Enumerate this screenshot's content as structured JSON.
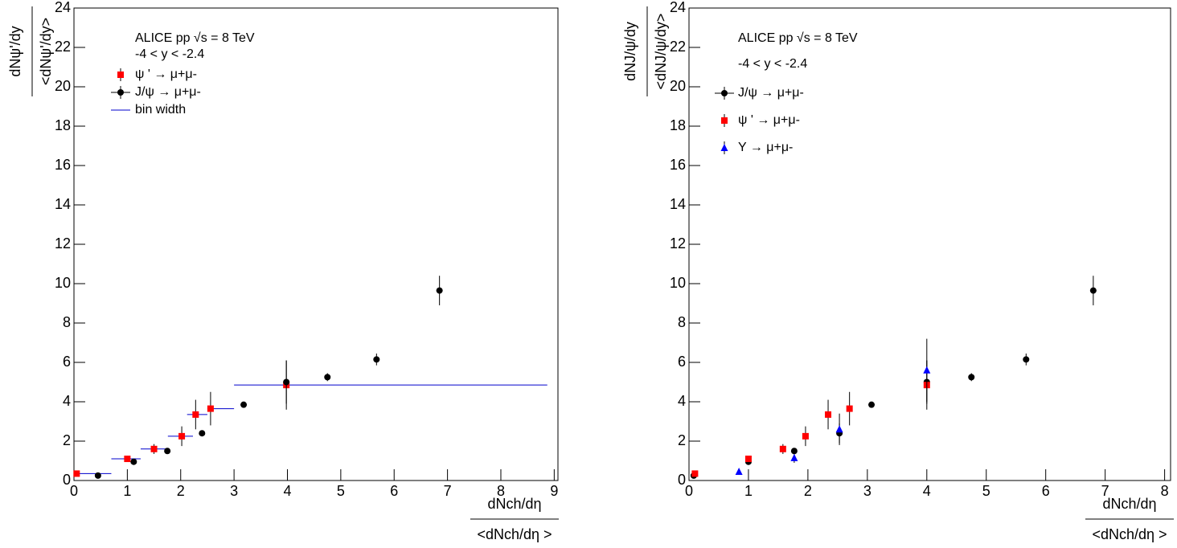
{
  "chart_data": [
    {
      "type": "scatter",
      "ylabel": [
        "dNψ'/dy",
        "<dNψ'/dy>"
      ],
      "xlabel": [
        "dNch/dη",
        "<dNch/dη >"
      ],
      "annotations": [
        "ALICE pp √s = 8 TeV",
        "-4 < y < -2.4"
      ],
      "xlim": [
        0,
        9.07
      ],
      "ylim": [
        0,
        24
      ],
      "xticks": [
        0,
        1,
        2,
        3,
        4,
        5,
        6,
        7,
        8,
        9
      ],
      "yticks": [
        0,
        2,
        4,
        6,
        8,
        10,
        12,
        14,
        16,
        18,
        20,
        22,
        24
      ],
      "bin_label": "bin width",
      "bin_color": "#0000cc",
      "series": [
        {
          "name": "ψ ' → μ+μ-",
          "color": "#ff0000",
          "marker": "square",
          "x": [
            0.05,
            1.0,
            1.5,
            2.02,
            2.28,
            2.56,
            3.98
          ],
          "values": [
            0.35,
            1.1,
            1.6,
            2.25,
            3.35,
            3.65,
            4.85
          ],
          "errors": [
            0.05,
            0.15,
            0.25,
            0.5,
            0.75,
            0.85,
            1.25
          ],
          "bin_lo": [
            0,
            0.7,
            1.25,
            1.76,
            2.12,
            2.5,
            3.0
          ],
          "bin_hi": [
            0.7,
            1.25,
            1.76,
            2.23,
            2.5,
            3.0,
            8.87
          ]
        },
        {
          "name": "J/ψ → μ+μ-",
          "color": "#000000",
          "marker": "circle",
          "x": [
            0.45,
            1.12,
            1.75,
            2.4,
            3.18,
            3.98,
            4.75,
            5.67,
            6.85
          ],
          "values": [
            0.25,
            0.95,
            1.5,
            2.4,
            3.85,
            5.0,
            5.25,
            6.15,
            9.65
          ],
          "errors": [
            0.1,
            0.1,
            0.1,
            0.1,
            0.1,
            1.1,
            0.2,
            0.3,
            0.75
          ]
        }
      ]
    },
    {
      "type": "scatter",
      "ylabel": [
        "dNJ/ψ/dy",
        "<dNJ/ψ/dy>"
      ],
      "xlabel": [
        "dNch/dη",
        "<dNch/dη >"
      ],
      "annotations": [
        "ALICE pp √s = 8 TeV",
        "-4 < y < -2.4"
      ],
      "xlim": [
        0,
        8.1
      ],
      "ylim": [
        0,
        24
      ],
      "xticks": [
        0,
        1,
        2,
        3,
        4,
        5,
        6,
        7,
        8
      ],
      "yticks": [
        0,
        2,
        4,
        6,
        8,
        10,
        12,
        14,
        16,
        18,
        20,
        22,
        24
      ],
      "series": [
        {
          "name": "J/ψ → μ+μ-",
          "color": "#000000",
          "marker": "circle",
          "x": [
            0.08,
            1.0,
            1.77,
            2.53,
            3.07,
            4.0,
            4.75,
            5.67,
            6.8
          ],
          "values": [
            0.25,
            0.95,
            1.5,
            2.4,
            3.85,
            5.0,
            5.25,
            6.15,
            9.65
          ],
          "errors": [
            0.1,
            0.1,
            0.1,
            0.5,
            0.1,
            1.1,
            0.2,
            0.3,
            0.75
          ]
        },
        {
          "name": "ψ ' → μ+μ-",
          "color": "#ff0000",
          "marker": "square",
          "x": [
            0.1,
            1.0,
            1.58,
            1.96,
            2.34,
            2.7,
            4.0
          ],
          "values": [
            0.35,
            1.1,
            1.6,
            2.25,
            3.35,
            3.65,
            4.85
          ],
          "errors": [
            0.05,
            0.15,
            0.25,
            0.5,
            0.75,
            0.85,
            1.25
          ]
        },
        {
          "name": "Υ → μ+μ-",
          "color": "#0000ff",
          "marker": "triangle",
          "x": [
            0.84,
            1.77,
            2.53,
            4.0
          ],
          "values": [
            0.45,
            1.15,
            2.6,
            5.6
          ],
          "errors": [
            0.1,
            0.25,
            0.8,
            1.6
          ]
        }
      ]
    }
  ]
}
